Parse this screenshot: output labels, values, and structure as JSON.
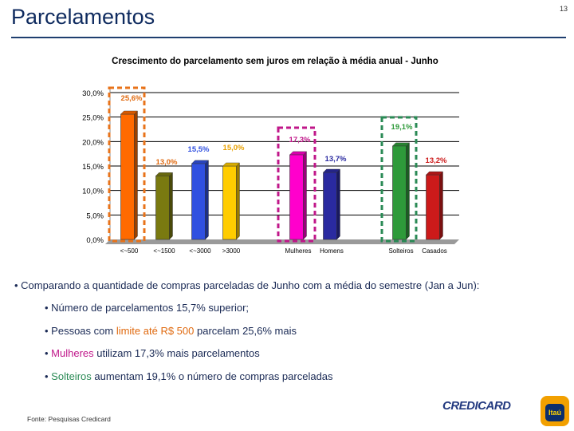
{
  "slide": {
    "title": "Parcelamentos",
    "page_number": "13"
  },
  "chart_data": {
    "type": "bar",
    "title": "Crescimento do parcelamento sem juros em relação à média anual - Junho",
    "ylim": [
      0,
      30
    ],
    "y_ticks": [
      "30,0%",
      "25,0%",
      "20,0%",
      "15,0%",
      "10,0%",
      "5,0%",
      "0,0%"
    ],
    "grid": true,
    "categories": [
      "<~500",
      "<~1500",
      "<~3000",
      ">3000",
      "Mulheres",
      "Homens",
      "Solteiros",
      "Casados"
    ],
    "values": [
      25.6,
      13.0,
      15.5,
      15.0,
      17.3,
      13.7,
      19.1,
      13.2
    ],
    "value_labels": [
      "25,6%",
      "13,0%",
      "15,5%",
      "15,0%",
      "17,3%",
      "13,7%",
      "19,1%",
      "13,2%"
    ],
    "colors": [
      "#ff6a00",
      "#7a7a10",
      "#3050e0",
      "#ffcc00",
      "#ff00cc",
      "#2a2aa0",
      "#2e9a3a",
      "#cc1a1a"
    ],
    "label_colors": [
      "#e06a10",
      "#e06a10",
      "#3050e0",
      "#e8a000",
      "#c0178a",
      "#2a2aa0",
      "#2e9a3a",
      "#cc1a1a"
    ],
    "highlight_colors": {
      "orange": "#e8731a",
      "magenta": "#c0178a",
      "green": "#2a8a55"
    }
  },
  "bullets": {
    "main": "• Comparando a quantidade de compras parceladas de Junho com a média do semestre (Jan a Jun):",
    "sub1": "• Número de parcelamentos 15,7% superior;",
    "sub2_pre": "• Pessoas com ",
    "sub2_hl": "limite até R$ 500",
    "sub2_post": " parcelam 25,6% mais",
    "sub3_pre": "• ",
    "sub3_hl": "Mulheres",
    "sub3_post": " utilizam 17,3% mais parcelamentos",
    "sub4_pre": "• ",
    "sub4_hl": "Solteiros",
    "sub4_post": " aumentam 19,1% o número de compras parceladas"
  },
  "footer": {
    "source": "Fonte: Pesquisas Credicard",
    "credicard_logo": "CREDICARD",
    "itau_logo": "Itaú"
  }
}
